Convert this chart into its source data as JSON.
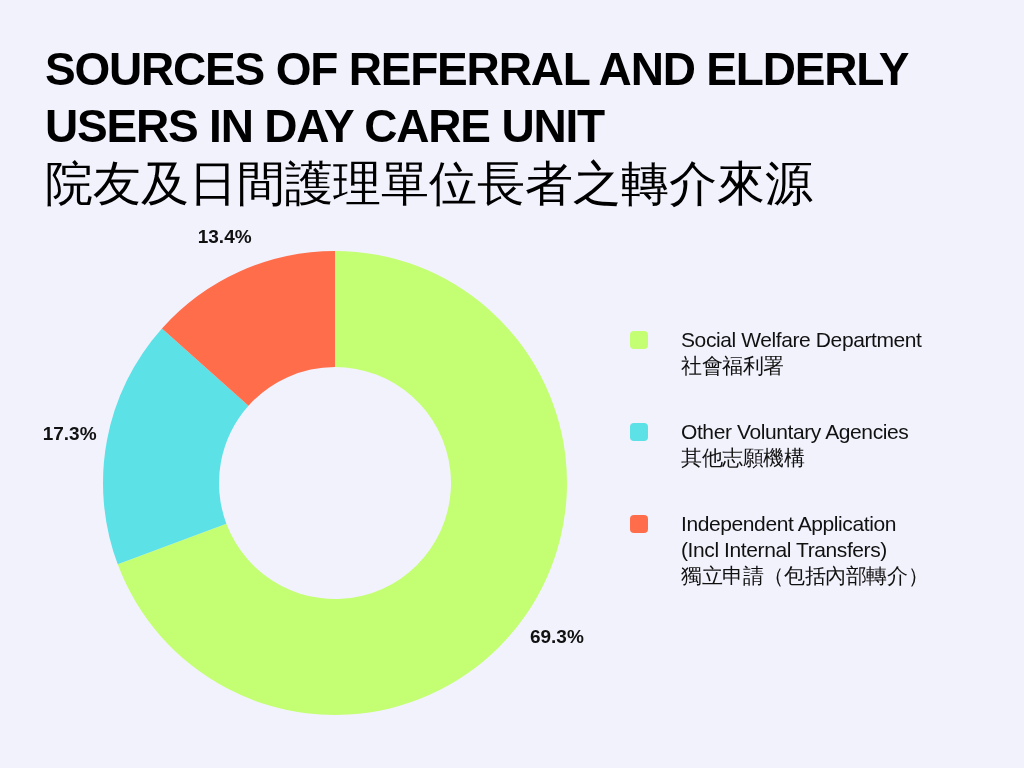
{
  "chart_data": {
    "type": "donut",
    "title": "SOURCES OF REFERRAL AND ELDERLY USERS IN DAY CARE UNIT",
    "subtitle": "院友及日間護理單位長者之轉介來源",
    "categories": [
      "Social Welfare Department\n社會福利署",
      "Other Voluntary Agencies\n其他志願機構",
      "Independent Application\n(Incl Internal Transfers)\n獨立申請（包括內部轉介）"
    ],
    "values": [
      69.3,
      17.3,
      13.4
    ],
    "colors": [
      "#c4fe72",
      "#5ce1e6",
      "#ff6d4b"
    ],
    "value_labels": [
      "69.3%",
      "17.3%",
      "13.4%"
    ],
    "legend": "right"
  }
}
